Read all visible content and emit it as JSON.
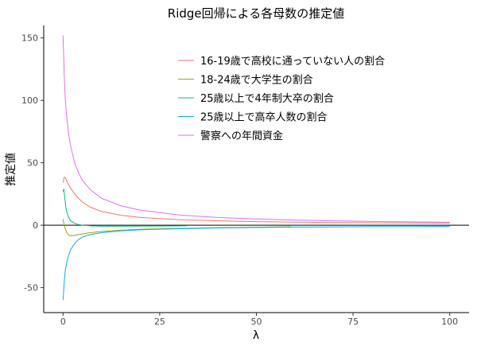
{
  "chart_data": {
    "type": "line",
    "title": "Ridge回帰による各母数の推定値",
    "xlabel": "λ",
    "ylabel": "推定値",
    "xlim": [
      -5,
      105
    ],
    "ylim": [
      -70,
      160
    ],
    "x_ticks": [
      0,
      25,
      50,
      75,
      100
    ],
    "y_ticks": [
      -50,
      0,
      50,
      100,
      150
    ],
    "x_tick_labels": [
      "0",
      "25",
      "50",
      "75",
      "100"
    ],
    "y_tick_labels": [
      "-50",
      "0",
      "50",
      "100",
      "150"
    ],
    "zero_line": 0,
    "grid": false,
    "legend_position": "top-center",
    "series": [
      {
        "name": "16-19歳で高校に通っていない人の割合",
        "color": "#F8766D",
        "x": [
          0,
          0.3,
          0.6,
          1,
          1.5,
          2,
          3,
          4,
          5,
          7,
          10,
          15,
          20,
          30,
          40,
          50,
          60,
          70,
          80,
          90,
          100
        ],
        "y": [
          34,
          38.5,
          38,
          35,
          32,
          29.5,
          25,
          21.5,
          18.5,
          14.5,
          11,
          8,
          6.2,
          4.5,
          3.5,
          2.9,
          2.5,
          2.2,
          2.0,
          1.8,
          1.6
        ]
      },
      {
        "name": "18-24歳で大学生の割合",
        "color": "#A3A500",
        "x": [
          0,
          0.3,
          0.6,
          1,
          1.5,
          2,
          3,
          4,
          5,
          7,
          10,
          15,
          20,
          30,
          40,
          50,
          59
        ],
        "y": [
          5,
          0,
          -3,
          -6,
          -8,
          -8.5,
          -8.2,
          -7.5,
          -7,
          -6,
          -5,
          -4,
          -3.3,
          -2.5,
          -2,
          -1.6,
          -1.2
        ]
      },
      {
        "name": "25歳以上で4年制大卒の割合",
        "color": "#00BF7D",
        "x": [
          0,
          0.2,
          0.4,
          0.7,
          1,
          1.5,
          2,
          3,
          4,
          5,
          7,
          10,
          15,
          20,
          25,
          32
        ],
        "y": [
          27,
          29,
          23,
          15,
          10,
          6,
          3.5,
          1.5,
          0.5,
          0,
          -0.5,
          -0.8,
          -0.8,
          -0.7,
          -0.6,
          -0.5
        ]
      },
      {
        "name": "25歳以上で高卒人数の割合",
        "color": "#00B0F6",
        "x": [
          0,
          0.3,
          0.6,
          1,
          1.5,
          2,
          3,
          4,
          5,
          7,
          10,
          15,
          20,
          30,
          40,
          50,
          60,
          70,
          80,
          90,
          100
        ],
        "y": [
          -60,
          -45,
          -36,
          -29,
          -23.5,
          -19.5,
          -14.5,
          -11.5,
          -9.5,
          -7.5,
          -6,
          -4.5,
          -3.7,
          -2.8,
          -2.2,
          -1.8,
          -1.5,
          -1.3,
          -1.1,
          -1.0,
          -0.9
        ]
      },
      {
        "name": "警察への年間資金",
        "color": "#E76BF3",
        "x": [
          0,
          0.3,
          0.6,
          1,
          1.5,
          2,
          3,
          4,
          5,
          7,
          10,
          15,
          20,
          30,
          40,
          50,
          60,
          70,
          80,
          90,
          100
        ],
        "y": [
          152,
          120,
          100,
          85,
          72,
          63,
          50,
          42,
          36,
          28.5,
          21.5,
          15.5,
          12,
          8.2,
          6.2,
          5,
          4.1,
          3.5,
          3.0,
          2.7,
          2.4
        ]
      }
    ]
  }
}
